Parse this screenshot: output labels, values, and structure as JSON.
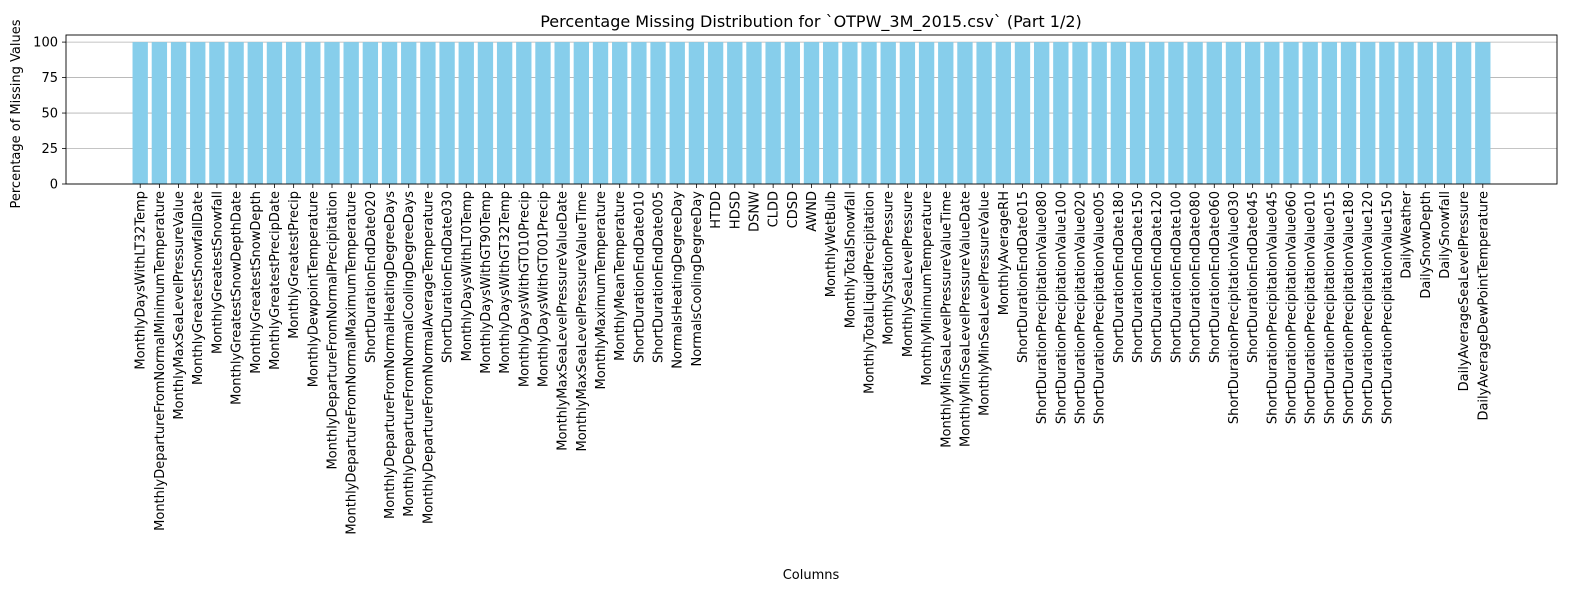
{
  "chart_data": {
    "type": "bar",
    "title": "Percentage Missing Distribution for `OTPW_3M_2015.csv` (Part 1/2)",
    "xlabel": "Columns",
    "ylabel": "Percentage of Missing Values",
    "ylim": [
      0,
      105
    ],
    "yticks": [
      0,
      25,
      50,
      75,
      100
    ],
    "grid": "y",
    "bar_color": "#87ceeb",
    "categories": [
      "MonthlyDaysWithLT32Temp",
      "MonthlyDepartureFromNormalMinimumTemperature",
      "MonthlyMaxSeaLevelPressureValue",
      "MonthlyGreatestSnowfallDate",
      "MonthlyGreatestSnowfall",
      "MonthlyGreatestSnowDepthDate",
      "MonthlyGreatestSnowDepth",
      "MonthlyGreatestPrecipDate",
      "MonthlyGreatestPrecip",
      "MonthlyDewpointTemperature",
      "MonthlyDepartureFromNormalPrecipitation",
      "MonthlyDepartureFromNormalMaximumTemperature",
      "ShortDurationEndDate020",
      "MonthlyDepartureFromNormalHeatingDegreeDays",
      "MonthlyDepartureFromNormalCoolingDegreeDays",
      "MonthlyDepartureFromNormalAverageTemperature",
      "ShortDurationEndDate030",
      "MonthlyDaysWithLT0Temp",
      "MonthlyDaysWithGT90Temp",
      "MonthlyDaysWithGT32Temp",
      "MonthlyDaysWithGT010Precip",
      "MonthlyDaysWithGT001Precip",
      "MonthlyMaxSeaLevelPressureValueDate",
      "MonthlyMaxSeaLevelPressureValueTime",
      "MonthlyMaximumTemperature",
      "MonthlyMeanTemperature",
      "ShortDurationEndDate010",
      "ShortDurationEndDate005",
      "NormalsHeatingDegreeDay",
      "NormalsCoolingDegreeDay",
      "HTDD",
      "HDSD",
      "DSNW",
      "CLDD",
      "CDSD",
      "AWND",
      "MonthlyWetBulb",
      "MonthlyTotalSnowfall",
      "MonthlyTotalLiquidPrecipitation",
      "MonthlyStationPressure",
      "MonthlySeaLevelPressure",
      "MonthlyMinimumTemperature",
      "MonthlyMinSeaLevelPressureValueTime",
      "MonthlyMinSeaLevelPressureValueDate",
      "MonthlyMinSeaLevelPressureValue",
      "MonthlyAverageRH",
      "ShortDurationEndDate015",
      "ShortDurationPrecipitationValue080",
      "ShortDurationPrecipitationValue100",
      "ShortDurationPrecipitationValue020",
      "ShortDurationPrecipitationValue005",
      "ShortDurationEndDate180",
      "ShortDurationEndDate150",
      "ShortDurationEndDate120",
      "ShortDurationEndDate100",
      "ShortDurationEndDate080",
      "ShortDurationEndDate060",
      "ShortDurationPrecipitationValue030",
      "ShortDurationEndDate045",
      "ShortDurationPrecipitationValue045",
      "ShortDurationPrecipitationValue060",
      "ShortDurationPrecipitationValue010",
      "ShortDurationPrecipitationValue015",
      "ShortDurationPrecipitationValue180",
      "ShortDurationPrecipitationValue120",
      "ShortDurationPrecipitationValue150",
      "DailyWeather",
      "DailySnowDepth",
      "DailySnowfall",
      "DailyAverageSeaLevelPressure",
      "DailyAverageDewPointTemperature"
    ],
    "values": [
      100,
      100,
      100,
      100,
      100,
      100,
      100,
      100,
      100,
      100,
      100,
      100,
      100,
      100,
      100,
      100,
      100,
      100,
      100,
      100,
      100,
      100,
      100,
      100,
      100,
      100,
      100,
      100,
      100,
      100,
      100,
      100,
      100,
      100,
      100,
      100,
      100,
      100,
      100,
      100,
      100,
      100,
      100,
      100,
      100,
      100,
      100,
      100,
      100,
      100,
      100,
      100,
      100,
      100,
      100,
      100,
      100,
      100,
      100,
      100,
      100,
      100,
      100,
      100,
      100,
      100,
      99.9,
      99.9,
      99.9,
      99.9,
      99.9
    ]
  }
}
